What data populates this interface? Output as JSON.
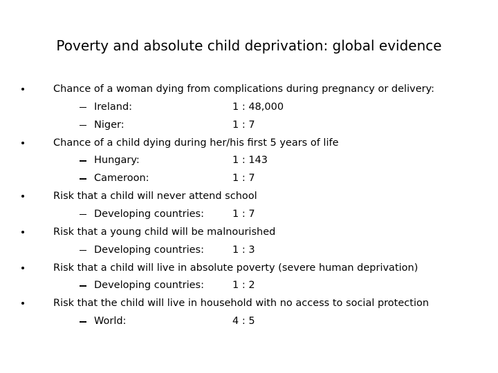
{
  "title": "Poverty and absolute child deprivation: global evidence",
  "bullets": [
    {
      "text": "Chance of a woman dying from complications during pregnancy or delivery:",
      "items": [
        {
          "label": "Ireland:",
          "value": "1 : 48,000"
        },
        {
          "label": "Niger:",
          "value": "1 : 7"
        }
      ]
    },
    {
      "text": "Chance of a child dying during her/his first 5 years of life",
      "items": [
        {
          "label": "Hungary:",
          "value": "1 : 143"
        },
        {
          "label": "Cameroon:",
          "value": "1 : 7"
        }
      ]
    },
    {
      "text": "Risk that a child will never attend school",
      "items": [
        {
          "label": "Developing countries:",
          "value": "1 : 7"
        }
      ]
    },
    {
      "text": "Risk that a young child will be malnourished",
      "items": [
        {
          "label": "Developing countries:",
          "value": "1 : 3"
        }
      ]
    },
    {
      "text": "Risk that a child will live in absolute poverty (severe human deprivation)",
      "items": [
        {
          "label": "Developing countries:",
          "value": "1 : 2"
        }
      ]
    },
    {
      "text": "Risk that the child will live in household with no access to social protection",
      "items": [
        {
          "label": "World:",
          "value": "4 : 5"
        }
      ]
    }
  ]
}
